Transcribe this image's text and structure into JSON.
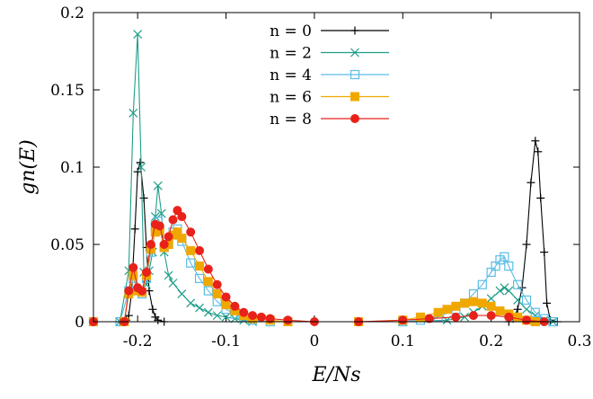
{
  "chart_data": {
    "type": "line",
    "title": "",
    "xlabel": "E/Ns",
    "ylabel": "gn(E)",
    "xlim": [
      -0.25,
      0.3
    ],
    "ylim": [
      0,
      0.2
    ],
    "xticks": [
      "-0.2",
      "-0.1",
      "0",
      "0.1",
      "0.2",
      "0.3"
    ],
    "yticks": [
      "0",
      "0.05",
      "0.1",
      "0.15",
      "0.2"
    ],
    "legend_position": "top-center",
    "grid": false,
    "series": [
      {
        "name": "n = 0",
        "color": "#000000",
        "marker": "plus",
        "points": [
          [
            -0.25,
            0
          ],
          [
            -0.22,
            0
          ],
          [
            -0.213,
            0.001
          ],
          [
            -0.21,
            0.004
          ],
          [
            -0.207,
            0.018
          ],
          [
            -0.203,
            0.06
          ],
          [
            -0.2,
            0.097
          ],
          [
            -0.197,
            0.103
          ],
          [
            -0.193,
            0.08
          ],
          [
            -0.19,
            0.048
          ],
          [
            -0.187,
            0.02
          ],
          [
            -0.183,
            0.008
          ],
          [
            -0.18,
            0.003
          ],
          [
            -0.177,
            0.001
          ],
          [
            -0.17,
            0
          ],
          [
            0.22,
            0
          ],
          [
            0.225,
            0.002
          ],
          [
            0.23,
            0.008
          ],
          [
            0.235,
            0.022
          ],
          [
            0.24,
            0.05
          ],
          [
            0.245,
            0.09
          ],
          [
            0.25,
            0.117
          ],
          [
            0.253,
            0.11
          ],
          [
            0.256,
            0.08
          ],
          [
            0.26,
            0.045
          ],
          [
            0.263,
            0.012
          ],
          [
            0.267,
            0.001
          ],
          [
            0.275,
            0
          ]
        ]
      },
      {
        "name": "n = 2",
        "color": "#1f9e89",
        "marker": "cross",
        "points": [
          [
            -0.25,
            0
          ],
          [
            -0.22,
            0
          ],
          [
            -0.21,
            0.033
          ],
          [
            -0.205,
            0.135
          ],
          [
            -0.2,
            0.186
          ],
          [
            -0.196,
            0.1
          ],
          [
            -0.193,
            0.032
          ],
          [
            -0.19,
            0.024
          ],
          [
            -0.187,
            0.033
          ],
          [
            -0.183,
            0.045
          ],
          [
            -0.18,
            0.068
          ],
          [
            -0.177,
            0.088
          ],
          [
            -0.173,
            0.07
          ],
          [
            -0.17,
            0.045
          ],
          [
            -0.165,
            0.03
          ],
          [
            -0.16,
            0.025
          ],
          [
            -0.15,
            0.018
          ],
          [
            -0.14,
            0.012
          ],
          [
            -0.13,
            0.009
          ],
          [
            -0.12,
            0.006
          ],
          [
            -0.11,
            0.004
          ],
          [
            -0.1,
            0.003
          ],
          [
            -0.09,
            0.002
          ],
          [
            -0.08,
            0.001
          ],
          [
            -0.07,
            0
          ],
          [
            0.1,
            0
          ],
          [
            0.15,
            0.001
          ],
          [
            0.17,
            0.003
          ],
          [
            0.18,
            0.006
          ],
          [
            0.19,
            0.01
          ],
          [
            0.2,
            0.015
          ],
          [
            0.21,
            0.02
          ],
          [
            0.215,
            0.022
          ],
          [
            0.22,
            0.02
          ],
          [
            0.23,
            0.014
          ],
          [
            0.24,
            0.008
          ],
          [
            0.25,
            0.004
          ],
          [
            0.26,
            0.001
          ],
          [
            0.27,
            0
          ]
        ]
      },
      {
        "name": "n = 4",
        "color": "#5bbde6",
        "marker": "open-square",
        "points": [
          [
            -0.25,
            0
          ],
          [
            -0.22,
            0
          ],
          [
            -0.21,
            0.02
          ],
          [
            -0.205,
            0.028
          ],
          [
            -0.2,
            0.02
          ],
          [
            -0.195,
            0.018
          ],
          [
            -0.19,
            0.028
          ],
          [
            -0.185,
            0.045
          ],
          [
            -0.18,
            0.062
          ],
          [
            -0.177,
            0.065
          ],
          [
            -0.17,
            0.048
          ],
          [
            -0.165,
            0.05
          ],
          [
            -0.16,
            0.058
          ],
          [
            -0.155,
            0.06
          ],
          [
            -0.15,
            0.052
          ],
          [
            -0.14,
            0.038
          ],
          [
            -0.13,
            0.028
          ],
          [
            -0.12,
            0.02
          ],
          [
            -0.11,
            0.013
          ],
          [
            -0.1,
            0.008
          ],
          [
            -0.09,
            0.005
          ],
          [
            -0.08,
            0.003
          ],
          [
            -0.07,
            0.001
          ],
          [
            -0.05,
            0
          ],
          [
            0.1,
            0
          ],
          [
            0.12,
            0.001
          ],
          [
            0.14,
            0.003
          ],
          [
            0.16,
            0.008
          ],
          [
            0.17,
            0.012
          ],
          [
            0.18,
            0.018
          ],
          [
            0.19,
            0.024
          ],
          [
            0.2,
            0.032
          ],
          [
            0.205,
            0.036
          ],
          [
            0.21,
            0.04
          ],
          [
            0.215,
            0.042
          ],
          [
            0.22,
            0.036
          ],
          [
            0.23,
            0.024
          ],
          [
            0.24,
            0.014
          ],
          [
            0.25,
            0.006
          ],
          [
            0.26,
            0.002
          ],
          [
            0.27,
            0
          ]
        ]
      },
      {
        "name": "n = 6",
        "color": "#f0a800",
        "marker": "filled-square",
        "points": [
          [
            -0.25,
            0
          ],
          [
            -0.215,
            0
          ],
          [
            -0.21,
            0.018
          ],
          [
            -0.205,
            0.03
          ],
          [
            -0.2,
            0.02
          ],
          [
            -0.195,
            0.019
          ],
          [
            -0.19,
            0.03
          ],
          [
            -0.185,
            0.047
          ],
          [
            -0.18,
            0.058
          ],
          [
            -0.175,
            0.059
          ],
          [
            -0.17,
            0.048
          ],
          [
            -0.165,
            0.05
          ],
          [
            -0.16,
            0.056
          ],
          [
            -0.155,
            0.058
          ],
          [
            -0.15,
            0.054
          ],
          [
            -0.14,
            0.046
          ],
          [
            -0.13,
            0.036
          ],
          [
            -0.12,
            0.026
          ],
          [
            -0.11,
            0.018
          ],
          [
            -0.1,
            0.011
          ],
          [
            -0.09,
            0.007
          ],
          [
            -0.08,
            0.004
          ],
          [
            -0.07,
            0.002
          ],
          [
            -0.05,
            0.001
          ],
          [
            -0.03,
            0
          ],
          [
            0.05,
            0
          ],
          [
            0.1,
            0.001
          ],
          [
            0.12,
            0.003
          ],
          [
            0.14,
            0.006
          ],
          [
            0.15,
            0.008
          ],
          [
            0.16,
            0.01
          ],
          [
            0.17,
            0.012
          ],
          [
            0.18,
            0.013
          ],
          [
            0.19,
            0.012
          ],
          [
            0.2,
            0.01
          ],
          [
            0.21,
            0.007
          ],
          [
            0.22,
            0.005
          ],
          [
            0.23,
            0.003
          ],
          [
            0.24,
            0.001
          ],
          [
            0.25,
            0
          ]
        ]
      },
      {
        "name": "n = 8",
        "color": "#e8221a",
        "marker": "filled-circle",
        "points": [
          [
            -0.25,
            0
          ],
          [
            -0.215,
            0
          ],
          [
            -0.21,
            0.02
          ],
          [
            -0.205,
            0.035
          ],
          [
            -0.2,
            0.022
          ],
          [
            -0.195,
            0.02
          ],
          [
            -0.19,
            0.032
          ],
          [
            -0.185,
            0.05
          ],
          [
            -0.18,
            0.063
          ],
          [
            -0.175,
            0.062
          ],
          [
            -0.17,
            0.05
          ],
          [
            -0.165,
            0.055
          ],
          [
            -0.16,
            0.066
          ],
          [
            -0.155,
            0.072
          ],
          [
            -0.15,
            0.068
          ],
          [
            -0.14,
            0.058
          ],
          [
            -0.13,
            0.046
          ],
          [
            -0.12,
            0.034
          ],
          [
            -0.11,
            0.024
          ],
          [
            -0.1,
            0.016
          ],
          [
            -0.09,
            0.01
          ],
          [
            -0.08,
            0.006
          ],
          [
            -0.07,
            0.004
          ],
          [
            -0.06,
            0.003
          ],
          [
            -0.05,
            0.002
          ],
          [
            -0.03,
            0.001
          ],
          [
            0,
            0
          ],
          [
            0.05,
            0
          ],
          [
            0.1,
            0.001
          ],
          [
            0.13,
            0.002
          ],
          [
            0.16,
            0.003
          ],
          [
            0.18,
            0.004
          ],
          [
            0.2,
            0.004
          ],
          [
            0.22,
            0.003
          ],
          [
            0.24,
            0.001
          ],
          [
            0.26,
            0
          ]
        ]
      }
    ]
  }
}
